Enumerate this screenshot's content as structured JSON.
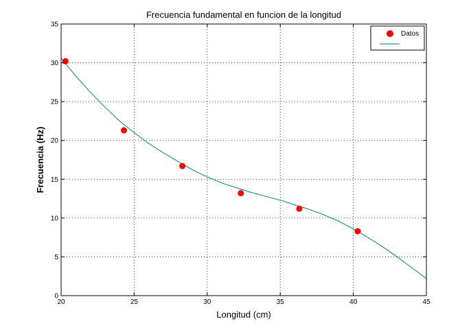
{
  "chart_data": {
    "type": "scatter",
    "title": "Frecuencia fundamental en funcion de la longitud",
    "xlabel": "Longitud (cm)",
    "ylabel": "Frecuencia (Hz)",
    "xlim": [
      20,
      45
    ],
    "ylim": [
      0,
      35
    ],
    "xticks": [
      20,
      25,
      30,
      35,
      40,
      45
    ],
    "yticks": [
      0,
      5,
      10,
      15,
      20,
      25,
      30,
      35
    ],
    "grid": true,
    "legend_position": "top-right",
    "series": [
      {
        "name": "Datos",
        "kind": "markers",
        "color": "#ff0000",
        "x": [
          20.3,
          24.3,
          28.3,
          32.3,
          36.3,
          40.3
        ],
        "y": [
          30.2,
          21.3,
          16.7,
          13.2,
          11.2,
          8.3
        ]
      },
      {
        "name": "",
        "kind": "line",
        "color": "#007f7f",
        "x": [
          20,
          21,
          22,
          23,
          24,
          25,
          26,
          27,
          28,
          29,
          30,
          31,
          32,
          33,
          34,
          35,
          36,
          37,
          38,
          39,
          40,
          41,
          42,
          43,
          44,
          45
        ],
        "y": [
          30.6,
          28.3,
          26.2,
          24.3,
          22.5,
          21.0,
          19.6,
          18.4,
          17.3,
          16.2,
          15.3,
          14.5,
          13.9,
          13.3,
          12.8,
          12.3,
          11.7,
          11.1,
          10.4,
          9.6,
          8.6,
          7.5,
          6.3,
          5.0,
          3.6,
          2.2
        ]
      }
    ]
  }
}
